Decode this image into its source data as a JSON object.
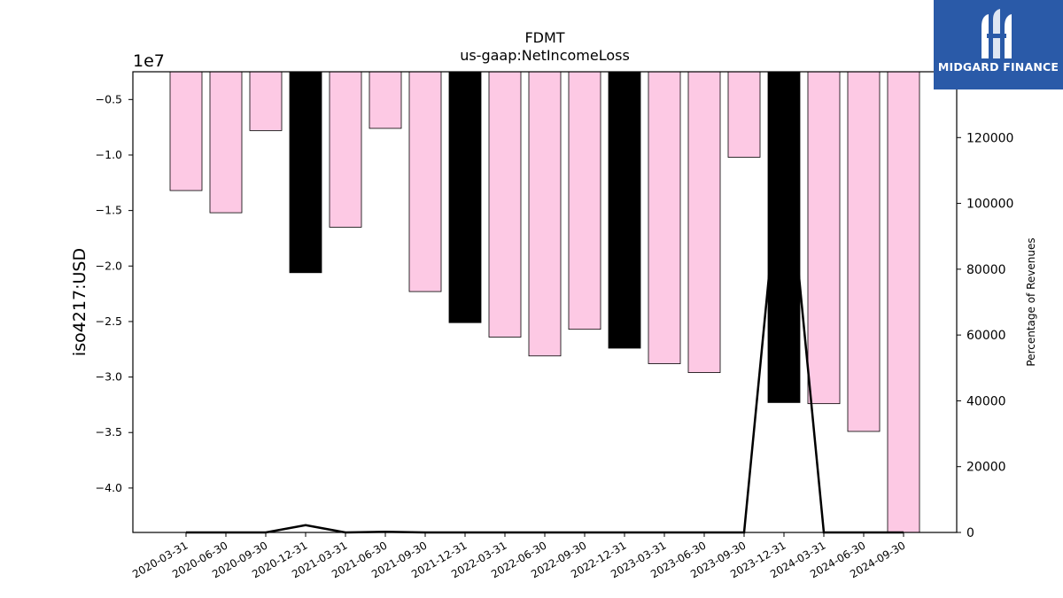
{
  "logo": {
    "text": "MIDGARD FINANCE",
    "icon": "midgard-logo-icon",
    "background": "#2a5aa8"
  },
  "chart_data": {
    "type": "bar",
    "title": "FDMT",
    "subtitle": "us-gaap:NetIncomeLoss",
    "ylabel": "iso4217:USD",
    "y_multiplier": "1e7",
    "y2label": "Percentage of Revenues",
    "categories": [
      "2020-03-31",
      "2020-06-30",
      "2020-09-30",
      "2020-12-31",
      "2021-03-31",
      "2021-06-30",
      "2021-09-30",
      "2021-12-31",
      "2022-03-31",
      "2022-06-30",
      "2022-09-30",
      "2022-12-31",
      "2023-03-31",
      "2023-06-30",
      "2023-09-30",
      "2023-12-31",
      "2024-03-31",
      "2024-06-30",
      "2024-09-30"
    ],
    "values": [
      -13200000,
      -15200000,
      -7800000,
      -20600000,
      -16500000,
      -7600000,
      -22300000,
      -25100000,
      -26400000,
      -28100000,
      -25700000,
      -27400000,
      -28800000,
      -29600000,
      -10200000,
      -32300000,
      -32400000,
      -34900000,
      -44000000
    ],
    "bar_colors": [
      "#fdc9e4",
      "#fdc9e4",
      "#fdc9e4",
      "#000000",
      "#fdc9e4",
      "#fdc9e4",
      "#fdc9e4",
      "#000000",
      "#fdc9e4",
      "#fdc9e4",
      "#fdc9e4",
      "#000000",
      "#fdc9e4",
      "#fdc9e4",
      "#fdc9e4",
      "#000000",
      "#fdc9e4",
      "#fdc9e4",
      "#fdc9e4"
    ],
    "ylim": [
      -44000000,
      -2500000
    ],
    "yticks": [
      -5000000,
      -10000000,
      -15000000,
      -20000000,
      -25000000,
      -30000000,
      -35000000,
      -40000000
    ],
    "ytick_labels": [
      "−0.5",
      "−1.0",
      "−1.5",
      "−2.0",
      "−2.5",
      "−3.0",
      "−3.5",
      "−4.0"
    ],
    "series2": {
      "name": "Percentage of Revenues",
      "values": [
        0,
        0,
        0,
        2200,
        0,
        200,
        0,
        0,
        0,
        0,
        0,
        0,
        0,
        0,
        0,
        125000,
        0,
        0,
        0
      ],
      "ylim": [
        0,
        140000
      ],
      "yticks": [
        0,
        20000,
        40000,
        60000,
        80000,
        100000,
        120000
      ],
      "ytick_labels": [
        "0",
        "20000",
        "40000",
        "60000",
        "80000",
        "100000",
        "120000"
      ]
    },
    "grid": false
  }
}
